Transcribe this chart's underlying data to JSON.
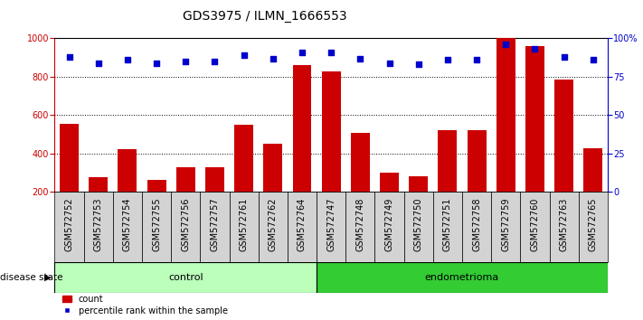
{
  "title": "GDS3975 / ILMN_1666553",
  "samples": [
    "GSM572752",
    "GSM572753",
    "GSM572754",
    "GSM572755",
    "GSM572756",
    "GSM572757",
    "GSM572761",
    "GSM572762",
    "GSM572764",
    "GSM572747",
    "GSM572748",
    "GSM572749",
    "GSM572750",
    "GSM572751",
    "GSM572758",
    "GSM572759",
    "GSM572760",
    "GSM572763",
    "GSM572765"
  ],
  "counts": [
    555,
    278,
    425,
    263,
    328,
    328,
    550,
    450,
    860,
    830,
    510,
    300,
    280,
    520,
    520,
    1000,
    960,
    785,
    430
  ],
  "percentiles": [
    88,
    84,
    86,
    84,
    85,
    85,
    89,
    87,
    91,
    91,
    87,
    84,
    83,
    86,
    86,
    96,
    93,
    88,
    86
  ],
  "control_count": 9,
  "endometrioma_count": 10,
  "bar_color": "#cc0000",
  "dot_color": "#0000cc",
  "ylim_left": [
    200,
    1000
  ],
  "ylim_right": [
    0,
    100
  ],
  "yticks_left": [
    200,
    400,
    600,
    800,
    1000
  ],
  "yticks_right": [
    0,
    25,
    50,
    75,
    100
  ],
  "control_label": "control",
  "endometrioma_label": "endometrioma",
  "control_bg": "#bbffbb",
  "endometrioma_bg": "#33cc33",
  "sample_bg": "#d3d3d3",
  "disease_state_label": "disease state",
  "legend_count_label": "count",
  "legend_pct_label": "percentile rank within the sample",
  "title_fontsize": 10,
  "tick_fontsize": 7,
  "label_fontsize": 8,
  "bar_width": 0.65
}
